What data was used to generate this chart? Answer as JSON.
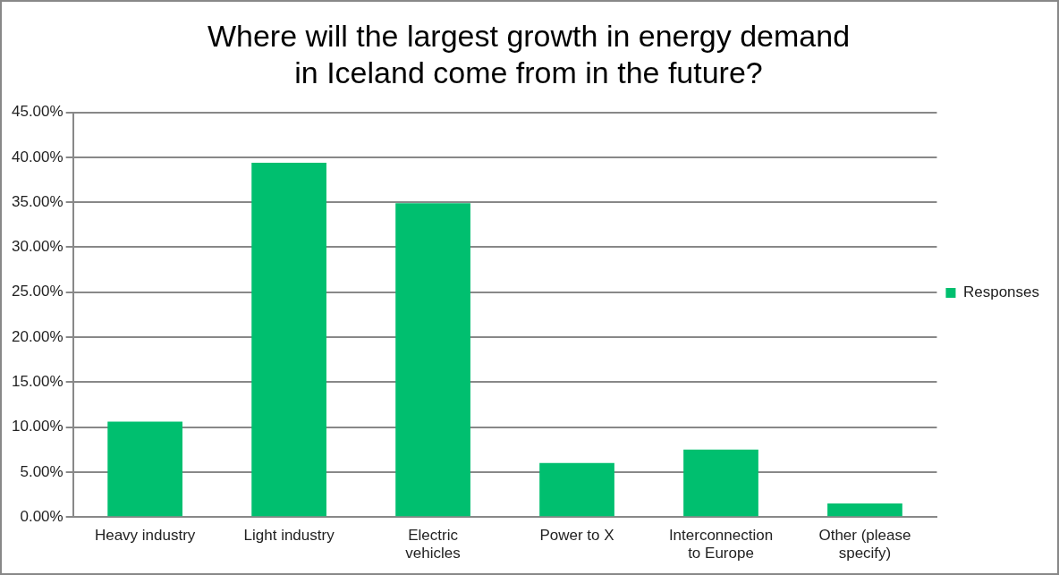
{
  "chart_data": {
    "type": "bar",
    "title": "Where will the largest growth in energy demand in Iceland come from in the future?",
    "categories": [
      "Heavy industry",
      "Light industry",
      "Electric vehicles",
      "Power to X",
      "Interconnection to Europe",
      "Other (please specify)"
    ],
    "series": [
      {
        "name": "Responses",
        "color": "#00bf6f",
        "values": [
          10.6,
          39.4,
          34.9,
          6.0,
          7.5,
          1.5
        ]
      }
    ],
    "ylim": [
      0,
      45
    ],
    "yticks": [
      {
        "value": 0,
        "label": "0.00%"
      },
      {
        "value": 5,
        "label": "5.00%"
      },
      {
        "value": 10,
        "label": "10.00%"
      },
      {
        "value": 15,
        "label": "15.00%"
      },
      {
        "value": 20,
        "label": "20.00%"
      },
      {
        "value": 25,
        "label": "25.00%"
      },
      {
        "value": 30,
        "label": "30.00%"
      },
      {
        "value": 35,
        "label": "35.00%"
      },
      {
        "value": 40,
        "label": "40.00%"
      },
      {
        "value": 45,
        "label": "45.00%"
      }
    ],
    "grid": "y",
    "legend": "right"
  }
}
